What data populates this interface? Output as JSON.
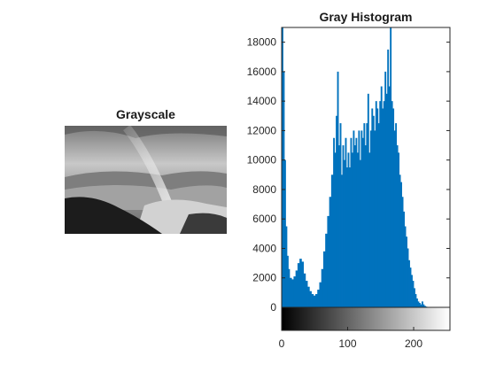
{
  "left_panel": {
    "title": "Grayscale"
  },
  "chart_data": {
    "type": "bar",
    "title": "Gray Histogram",
    "xlabel": "",
    "ylabel": "",
    "xlim": [
      0,
      255
    ],
    "ylim": [
      0,
      19000
    ],
    "bar_color": "#0072BD",
    "yticks": [
      0,
      2000,
      4000,
      6000,
      8000,
      10000,
      12000,
      14000,
      16000,
      18000
    ],
    "xticks": [
      0,
      100,
      200
    ],
    "colorbar": "grayscale gradient 0 to 255",
    "grid": false,
    "x": [
      0,
      2,
      4,
      6,
      8,
      10,
      12,
      15,
      18,
      21,
      24,
      27,
      30,
      33,
      36,
      39,
      42,
      45,
      48,
      51,
      54,
      57,
      60,
      63,
      66,
      69,
      72,
      75,
      78,
      80,
      82,
      84,
      86,
      88,
      90,
      92,
      94,
      96,
      98,
      100,
      102,
      104,
      106,
      108,
      110,
      112,
      114,
      116,
      118,
      120,
      122,
      124,
      126,
      128,
      130,
      132,
      134,
      136,
      138,
      140,
      142,
      144,
      146,
      148,
      150,
      152,
      154,
      156,
      158,
      160,
      162,
      164,
      166,
      168,
      170,
      172,
      174,
      176,
      178,
      180,
      182,
      184,
      186,
      188,
      190,
      192,
      194,
      196,
      198,
      200,
      202,
      204,
      206,
      208,
      210,
      212,
      214,
      216,
      218,
      220,
      222,
      224,
      226,
      228,
      230
    ],
    "values": [
      19000,
      16000,
      10000,
      5500,
      3500,
      2600,
      2000,
      1900,
      2100,
      2500,
      3000,
      3300,
      3100,
      2300,
      1800,
      1400,
      1100,
      900,
      800,
      900,
      1200,
      1700,
      2600,
      3800,
      5000,
      6200,
      7500,
      9000,
      11500,
      10500,
      13000,
      16000,
      11000,
      12500,
      9000,
      11000,
      10000,
      11500,
      9500,
      10500,
      9500,
      11500,
      10500,
      12000,
      11000,
      11500,
      10500,
      12000,
      10000,
      12000,
      11500,
      12500,
      11000,
      12500,
      14500,
      10500,
      12000,
      13500,
      13000,
      12000,
      14000,
      13500,
      12500,
      14000,
      15000,
      13500,
      14000,
      16000,
      14500,
      17500,
      15000,
      19000,
      14000,
      13500,
      12000,
      12500,
      11000,
      10500,
      9000,
      8500,
      7500,
      6500,
      5500,
      4800,
      4000,
      3200,
      2700,
      2200,
      1800,
      1300,
      900,
      600,
      400,
      300,
      200,
      400,
      200,
      100,
      50,
      0,
      0,
      0,
      0,
      0,
      0
    ]
  }
}
